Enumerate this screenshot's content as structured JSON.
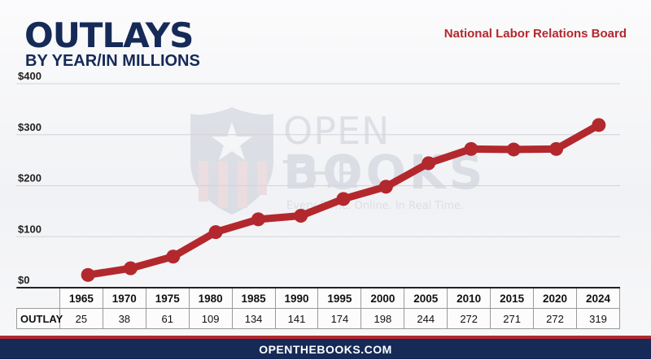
{
  "header": {
    "title": "OUTLAYS",
    "subtitle": "BY YEAR/IN MILLIONS",
    "agency": "National Labor Relations Board"
  },
  "watermark": {
    "line1": "OPEN THE",
    "line2": "BOOKS",
    "tagline": "Every Dime. Online. In Real Time."
  },
  "table": {
    "row_label": "OUTLAY"
  },
  "footer": {
    "site": "OPENTHEBOOKS.COM"
  },
  "colors": {
    "line": "#b3282d",
    "title": "#162a57",
    "accent": "#b3282d"
  },
  "chart_data": {
    "type": "line",
    "title": "OUTLAYS",
    "subtitle": "BY YEAR/IN MILLIONS",
    "xlabel": "",
    "ylabel": "",
    "categories": [
      "1965",
      "1970",
      "1975",
      "1980",
      "1985",
      "1990",
      "1995",
      "2000",
      "2005",
      "2010",
      "2015",
      "2020",
      "2024"
    ],
    "series": [
      {
        "values": [
          25,
          38,
          61,
          109,
          134,
          141,
          174,
          198,
          244,
          272,
          271,
          272,
          319
        ]
      }
    ],
    "ylim": [
      0,
      400
    ],
    "yticks": [
      0,
      100,
      200,
      300,
      400
    ],
    "ytick_labels": [
      "$0",
      "$100",
      "$200",
      "$300",
      "$400"
    ],
    "grid": true,
    "legend": "none"
  }
}
